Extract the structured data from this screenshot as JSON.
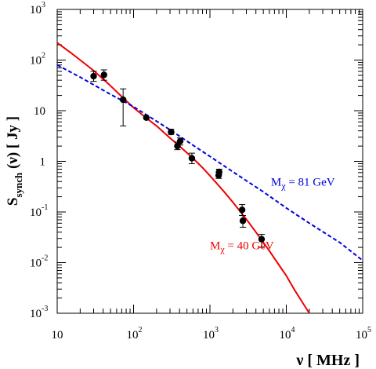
{
  "chart_data": {
    "type": "line",
    "xlabel": {
      "main": "ν [ MHz ]"
    },
    "ylabel": {
      "main": "S",
      "sub": "synch",
      "tail": " (ν) [ Jy ]"
    },
    "xscale": "log",
    "yscale": "log",
    "xlim": [
      10,
      100000
    ],
    "ylim": [
      0.001,
      1000
    ],
    "grid": false,
    "x_ticks": [
      {
        "base": "10",
        "exp": "",
        "value": 10
      },
      {
        "base": "10",
        "exp": "2",
        "value": 100
      },
      {
        "base": "10",
        "exp": "3",
        "value": 1000
      },
      {
        "base": "10",
        "exp": "4",
        "value": 10000
      },
      {
        "base": "10",
        "exp": "5",
        "value": 100000
      }
    ],
    "y_ticks": [
      {
        "base": "10",
        "exp": "-3",
        "value": 0.001
      },
      {
        "base": "10",
        "exp": "-2",
        "value": 0.01
      },
      {
        "base": "10",
        "exp": "-1",
        "value": 0.1
      },
      {
        "base": "1",
        "exp": "",
        "value": 1
      },
      {
        "base": "10",
        "exp": "",
        "value": 10
      },
      {
        "base": "10",
        "exp": "2",
        "value": 100
      },
      {
        "base": "10",
        "exp": "3",
        "value": 1000
      }
    ],
    "series": [
      {
        "kind": "line",
        "color": "#ee0000",
        "dash": "solid",
        "x": [
          10,
          15,
          20,
          30,
          50,
          70,
          100,
          150,
          200,
          300,
          400,
          600,
          800,
          1000,
          1500,
          2000,
          3000,
          4000,
          6000,
          8000,
          10000,
          13000,
          16000,
          20000
        ],
        "y": [
          220,
          140,
          100,
          62,
          31,
          19,
          11.5,
          7,
          5,
          2.9,
          2.0,
          1.15,
          0.75,
          0.52,
          0.26,
          0.155,
          0.072,
          0.04,
          0.017,
          0.009,
          0.0055,
          0.0028,
          0.0017,
          0.00095
        ]
      },
      {
        "kind": "line",
        "color": "#0000dd",
        "dash": "dashed",
        "x": [
          10,
          20,
          50,
          100,
          200,
          300,
          500,
          1000,
          2000,
          5000,
          10000,
          20000,
          50000,
          100000
        ],
        "y": [
          80,
          46,
          21,
          12,
          6.2,
          4.2,
          2.5,
          1.25,
          0.62,
          0.25,
          0.12,
          0.06,
          0.025,
          0.011
        ]
      },
      {
        "kind": "points",
        "color": "#000000",
        "points": [
          {
            "x": 30,
            "y": 48,
            "ylo": 38,
            "yhi": 60
          },
          {
            "x": 41,
            "y": 51,
            "ylo": 40,
            "yhi": 64
          },
          {
            "x": 73,
            "y": 16.5,
            "ylo": 5,
            "yhi": 27
          },
          {
            "x": 147,
            "y": 7.3
          },
          {
            "x": 310,
            "y": 3.8,
            "ylo": 3.4,
            "yhi": 4.3
          },
          {
            "x": 375,
            "y": 2.0,
            "ylo": 1.7,
            "yhi": 2.4
          },
          {
            "x": 408,
            "y": 2.5,
            "ylo": 2.1,
            "yhi": 2.9
          },
          {
            "x": 580,
            "y": 1.15,
            "ylo": 0.9,
            "yhi": 1.45
          },
          {
            "x": 1300,
            "y": 0.53,
            "ylo": 0.46,
            "yhi": 0.61
          },
          {
            "x": 1320,
            "y": 0.62,
            "ylo": 0.55,
            "yhi": 0.7
          },
          {
            "x": 2640,
            "y": 0.11,
            "ylo": 0.085,
            "yhi": 0.14
          },
          {
            "x": 2700,
            "y": 0.067,
            "ylo": 0.05,
            "yhi": 0.085
          },
          {
            "x": 4750,
            "y": 0.029,
            "ylo": 0.02,
            "yhi": 0.036
          }
        ]
      }
    ],
    "annotations": [
      {
        "id": "blue",
        "main": "M",
        "sub": "χ",
        "tail": " = 81 GeV",
        "color": "#0000dd",
        "x": 6300,
        "y": 0.33
      },
      {
        "id": "red",
        "main": "M",
        "sub": "χ",
        "tail": " = 40 GeV",
        "color": "#ee0000",
        "x": 1000,
        "y": 0.0185
      }
    ]
  }
}
